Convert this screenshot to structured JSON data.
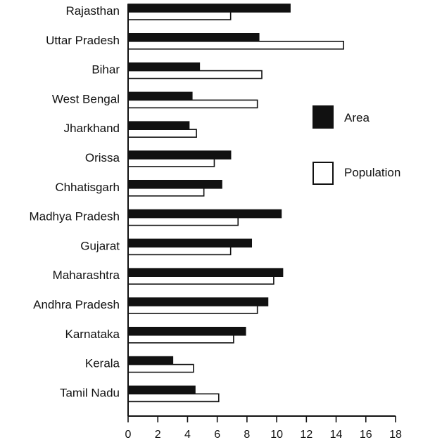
{
  "chart_data": {
    "type": "bar",
    "orientation": "horizontal",
    "title": "",
    "xlabel": "",
    "ylabel": "",
    "xlim": [
      0,
      18
    ],
    "x_ticks": [
      0,
      2,
      4,
      6,
      8,
      10,
      12,
      14,
      16,
      18
    ],
    "grid": false,
    "legend_position": "right",
    "categories": [
      "Rajasthan",
      "Uttar Pradesh",
      "Bihar",
      "West Bengal",
      "Jharkhand",
      "Orissa",
      "Chhatisgarh",
      "Madhya Pradesh",
      "Gujarat",
      "Maharashtra",
      "Andhra Pradesh",
      "Karnataka",
      "Kerala",
      "Tamil Nadu"
    ],
    "series": [
      {
        "name": "Area",
        "color": "#111111",
        "fill": "solid",
        "values": [
          10.9,
          8.8,
          4.8,
          4.3,
          4.1,
          6.9,
          6.3,
          10.3,
          8.3,
          10.4,
          9.4,
          7.9,
          3.0,
          4.5
        ]
      },
      {
        "name": "Population",
        "color": "#ffffff",
        "fill": "outline",
        "values": [
          6.9,
          14.5,
          9.0,
          8.7,
          4.6,
          5.8,
          5.1,
          7.4,
          6.9,
          9.8,
          8.7,
          7.1,
          4.4,
          6.1
        ]
      }
    ]
  }
}
